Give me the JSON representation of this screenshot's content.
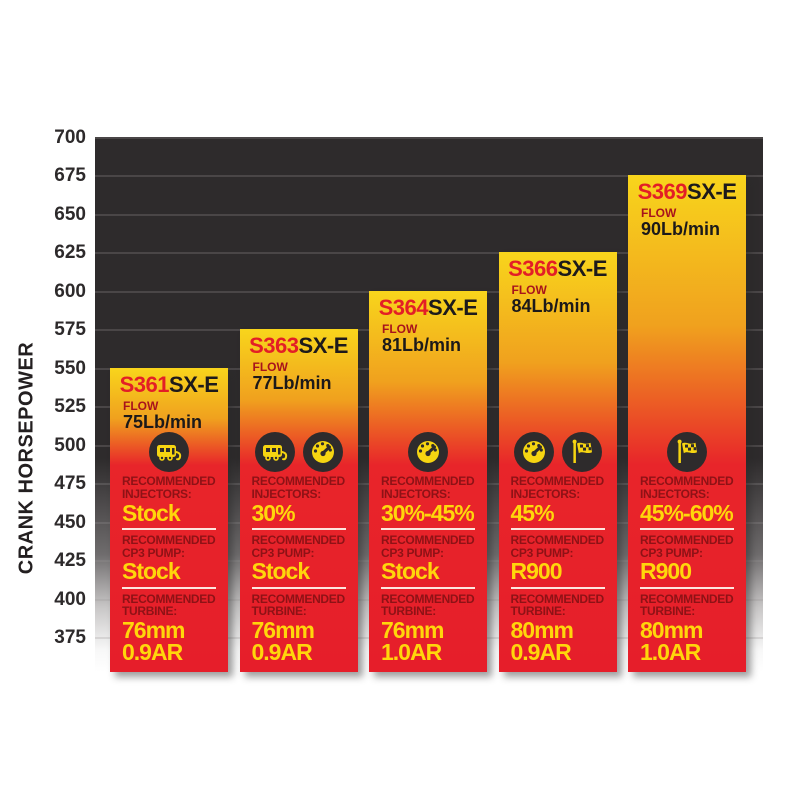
{
  "chart_data": {
    "type": "bar",
    "title": "",
    "xlabel": "",
    "ylabel": "CRANK HORSEPOWER",
    "ylim": [
      375,
      700
    ],
    "ytick_step": 25,
    "yticks": [
      700,
      675,
      650,
      625,
      600,
      575,
      550,
      525,
      500,
      475,
      450,
      425,
      400,
      375
    ],
    "categories": [
      "S361SX-E",
      "S363SX-E",
      "S364SX-E",
      "S366SX-E",
      "S369SX-E"
    ],
    "values": [
      550,
      575,
      600,
      625,
      675
    ],
    "grid": true,
    "legend_position": "none"
  },
  "colors": {
    "bar_top_yellow": "#f8d51c",
    "bar_mid_orange": "#f0a11e",
    "bar_bottom_red": "#e61e2a",
    "plot_background": "#2e2b2c",
    "model_red": "#e31e26",
    "model_black": "#1d1a1b",
    "flow_label_red": "#a8131c",
    "section_header_red": "#8e1216",
    "value_yellow": "#ffd60b",
    "icon_circle": "#2e2b2c",
    "icon_glyph": "#f6d511"
  },
  "axis": {
    "ylabel": "CRANK HORSEPOWER"
  },
  "bars": [
    {
      "model_prefix": "S361",
      "model_suffix": "SX-E",
      "hp": 550,
      "flow_label": "FLOW",
      "flow_value": "75Lb/min",
      "icons": [
        "rv-icon"
      ],
      "sections": [
        {
          "label": "RECOMMENDED INJECTORS:",
          "value": "Stock"
        },
        {
          "label": "RECOMMENDED CP3 PUMP:",
          "value": "Stock"
        },
        {
          "label": "RECOMMENDED TURBINE:",
          "value": "76mm",
          "value2": "0.9AR"
        }
      ]
    },
    {
      "model_prefix": "S363",
      "model_suffix": "SX-E",
      "hp": 575,
      "flow_label": "FLOW",
      "flow_value": "77Lb/min",
      "icons": [
        "rv-icon",
        "gauge-icon"
      ],
      "sections": [
        {
          "label": "RECOMMENDED INJECTORS:",
          "value": "30%"
        },
        {
          "label": "RECOMMENDED CP3 PUMP:",
          "value": "Stock"
        },
        {
          "label": "RECOMMENDED TURBINE:",
          "value": "76mm",
          "value2": "0.9AR"
        }
      ]
    },
    {
      "model_prefix": "S364",
      "model_suffix": "SX-E",
      "hp": 600,
      "flow_label": "FLOW",
      "flow_value": "81Lb/min",
      "icons": [
        "gauge-icon"
      ],
      "sections": [
        {
          "label": "RECOMMENDED INJECTORS:",
          "value": "30%-45%"
        },
        {
          "label": "RECOMMENDED CP3 PUMP:",
          "value": "Stock"
        },
        {
          "label": "RECOMMENDED TURBINE:",
          "value": "76mm",
          "value2": "1.0AR"
        }
      ]
    },
    {
      "model_prefix": "S366",
      "model_suffix": "SX-E",
      "hp": 625,
      "flow_label": "FLOW",
      "flow_value": "84Lb/min",
      "icons": [
        "gauge-icon",
        "race-flag-icon"
      ],
      "sections": [
        {
          "label": "RECOMMENDED INJECTORS:",
          "value": "45%"
        },
        {
          "label": "RECOMMENDED CP3 PUMP:",
          "value": "R900"
        },
        {
          "label": "RECOMMENDED TURBINE:",
          "value": "80mm",
          "value2": "0.9AR"
        }
      ]
    },
    {
      "model_prefix": "S369",
      "model_suffix": "SX-E",
      "hp": 675,
      "flow_label": "FLOW",
      "flow_value": "90Lb/min",
      "icons": [
        "race-flag-icon"
      ],
      "sections": [
        {
          "label": "RECOMMENDED INJECTORS:",
          "value": "45%-60%"
        },
        {
          "label": "RECOMMENDED CP3 PUMP:",
          "value": "R900"
        },
        {
          "label": "RECOMMENDED TURBINE:",
          "value": "80mm",
          "value2": "1.0AR"
        }
      ]
    }
  ]
}
